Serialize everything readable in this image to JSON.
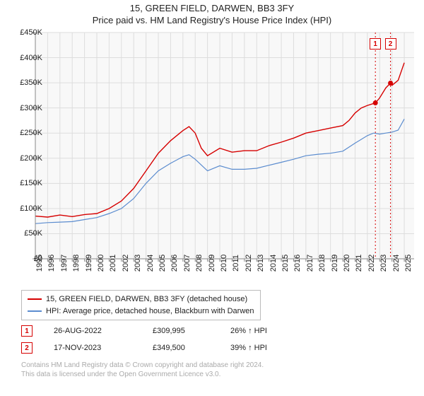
{
  "title": "15, GREEN FIELD, DARWEN, BB3 3FY",
  "subtitle": "Price paid vs. HM Land Registry's House Price Index (HPI)",
  "chart": {
    "type": "line",
    "plot_bg": "#f8f8f8",
    "grid_color": "#dddddd",
    "axis_line_color": "#888888",
    "y": {
      "min": 0,
      "max": 450000,
      "step": 50000,
      "ticks": [
        "£0",
        "£50K",
        "£100K",
        "£150K",
        "£200K",
        "£250K",
        "£300K",
        "£350K",
        "£400K",
        "£450K"
      ]
    },
    "x": {
      "min": 1995,
      "max": 2025.8,
      "ticks": [
        1995,
        1996,
        1997,
        1998,
        1999,
        2000,
        2001,
        2002,
        2003,
        2004,
        2005,
        2006,
        2007,
        2008,
        2009,
        2010,
        2011,
        2012,
        2013,
        2014,
        2015,
        2016,
        2017,
        2018,
        2019,
        2020,
        2021,
        2022,
        2023,
        2024,
        2025
      ]
    },
    "series": [
      {
        "name": "price_paid",
        "color": "#d60000",
        "width": 1.4,
        "points": [
          [
            1995,
            85000
          ],
          [
            1996,
            83000
          ],
          [
            1997,
            87000
          ],
          [
            1998,
            84000
          ],
          [
            1999,
            88000
          ],
          [
            2000,
            90000
          ],
          [
            2001,
            100000
          ],
          [
            2002,
            115000
          ],
          [
            2003,
            140000
          ],
          [
            2004,
            175000
          ],
          [
            2005,
            210000
          ],
          [
            2006,
            235000
          ],
          [
            2007,
            255000
          ],
          [
            2007.5,
            263000
          ],
          [
            2008,
            250000
          ],
          [
            2008.5,
            220000
          ],
          [
            2009,
            205000
          ],
          [
            2010,
            220000
          ],
          [
            2011,
            212000
          ],
          [
            2012,
            215000
          ],
          [
            2013,
            215000
          ],
          [
            2014,
            225000
          ],
          [
            2015,
            232000
          ],
          [
            2016,
            240000
          ],
          [
            2017,
            250000
          ],
          [
            2018,
            255000
          ],
          [
            2019,
            260000
          ],
          [
            2020,
            265000
          ],
          [
            2020.5,
            275000
          ],
          [
            2021,
            290000
          ],
          [
            2021.5,
            300000
          ],
          [
            2022,
            305000
          ],
          [
            2022.65,
            310000
          ],
          [
            2023,
            320000
          ],
          [
            2023.5,
            340000
          ],
          [
            2023.88,
            349500
          ],
          [
            2024,
            345000
          ],
          [
            2024.5,
            355000
          ],
          [
            2025,
            390000
          ]
        ]
      },
      {
        "name": "hpi",
        "color": "#5b8ccf",
        "width": 1.2,
        "points": [
          [
            1995,
            70000
          ],
          [
            1996,
            72000
          ],
          [
            1997,
            73000
          ],
          [
            1998,
            74000
          ],
          [
            1999,
            78000
          ],
          [
            2000,
            82000
          ],
          [
            2001,
            90000
          ],
          [
            2002,
            100000
          ],
          [
            2003,
            120000
          ],
          [
            2004,
            150000
          ],
          [
            2005,
            175000
          ],
          [
            2006,
            190000
          ],
          [
            2007,
            203000
          ],
          [
            2007.5,
            207000
          ],
          [
            2008,
            198000
          ],
          [
            2009,
            175000
          ],
          [
            2010,
            185000
          ],
          [
            2011,
            178000
          ],
          [
            2012,
            178000
          ],
          [
            2013,
            180000
          ],
          [
            2014,
            186000
          ],
          [
            2015,
            192000
          ],
          [
            2016,
            198000
          ],
          [
            2017,
            205000
          ],
          [
            2018,
            208000
          ],
          [
            2019,
            210000
          ],
          [
            2020,
            214000
          ],
          [
            2021,
            230000
          ],
          [
            2022,
            245000
          ],
          [
            2022.5,
            250000
          ],
          [
            2023,
            248000
          ],
          [
            2023.5,
            250000
          ],
          [
            2024,
            252000
          ],
          [
            2024.5,
            256000
          ],
          [
            2025,
            278000
          ]
        ]
      }
    ],
    "sale_markers": [
      {
        "label": "1",
        "x": 2022.65,
        "y": 310000,
        "color": "#d60000",
        "vline_dash": "2,3"
      },
      {
        "label": "2",
        "x": 2023.88,
        "y": 349500,
        "color": "#d60000",
        "vline_dash": "2,3"
      }
    ],
    "sale_dot_radius": 3.5
  },
  "legend": {
    "items": [
      {
        "color": "#d60000",
        "label": "15, GREEN FIELD, DARWEN, BB3 3FY (detached house)"
      },
      {
        "color": "#5b8ccf",
        "label": "HPI: Average price, detached house, Blackburn with Darwen"
      }
    ]
  },
  "sales": [
    {
      "n": "1",
      "color": "#d60000",
      "date": "26-AUG-2022",
      "price": "£309,995",
      "pct": "26% ↑ HPI"
    },
    {
      "n": "2",
      "color": "#d60000",
      "date": "17-NOV-2023",
      "price": "£349,500",
      "pct": "39% ↑ HPI"
    }
  ],
  "footer": {
    "line1": "Contains HM Land Registry data © Crown copyright and database right 2024.",
    "line2": "This data is licensed under the Open Government Licence v3.0."
  }
}
